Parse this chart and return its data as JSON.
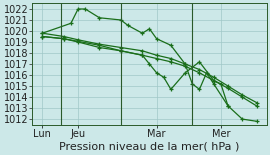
{
  "background_color": "#cce8e8",
  "grid_color": "#a0c8c8",
  "line_color": "#1a6e1a",
  "xlabel": "Pression niveau de la mer( hPa )",
  "ylim": [
    1011.5,
    1022.5
  ],
  "yticks": [
    1012,
    1013,
    1014,
    1015,
    1016,
    1017,
    1018,
    1019,
    1020,
    1021,
    1022
  ],
  "xtick_labels": [
    "Lun",
    "Jeu",
    "Mar",
    "Mer"
  ],
  "xtick_positions": [
    0.5,
    3,
    8.5,
    13
  ],
  "xlim": [
    -0.2,
    16.2
  ],
  "vline_positions": [
    1.8,
    6.0,
    11.0
  ],
  "series1_x": [
    0.5,
    2.5,
    3.0,
    3.5,
    4.5,
    6.0,
    6.5,
    7.5,
    8.0,
    8.5,
    9.5,
    10.5,
    11.0,
    11.5,
    12.0,
    12.5,
    13.5
  ],
  "series1_y": [
    1019.8,
    1020.7,
    1022.0,
    1022.0,
    1021.2,
    1021.0,
    1020.5,
    1019.8,
    1020.2,
    1019.3,
    1018.7,
    1017.0,
    1015.2,
    1014.7,
    1016.2,
    1015.2,
    1013.2
  ],
  "series2_x": [
    0.5,
    2.0,
    3.0,
    4.5,
    6.0,
    7.5,
    8.5,
    9.5,
    10.5,
    11.5,
    12.5,
    13.5,
    14.5,
    15.5
  ],
  "series2_y": [
    1019.8,
    1019.5,
    1019.2,
    1018.8,
    1018.5,
    1018.2,
    1017.8,
    1017.5,
    1017.0,
    1016.5,
    1015.8,
    1015.0,
    1014.2,
    1013.5
  ],
  "series3_x": [
    0.5,
    2.0,
    3.0,
    4.5,
    6.0,
    7.5,
    8.5,
    9.5,
    10.5,
    11.5,
    12.5,
    13.5,
    14.5,
    15.5
  ],
  "series3_y": [
    1019.5,
    1019.3,
    1019.0,
    1018.5,
    1018.2,
    1017.8,
    1017.5,
    1017.2,
    1016.8,
    1016.2,
    1015.5,
    1014.8,
    1014.0,
    1013.2
  ],
  "series4_x": [
    0.5,
    2.0,
    4.5,
    6.0,
    7.5,
    8.0,
    8.5,
    9.0,
    9.5,
    10.5,
    11.5,
    12.5,
    13.0,
    13.5,
    14.5,
    15.5
  ],
  "series4_y": [
    1019.5,
    1019.3,
    1018.7,
    1018.2,
    1017.8,
    1017.0,
    1016.2,
    1015.8,
    1014.7,
    1016.2,
    1017.2,
    1015.5,
    1015.2,
    1013.2,
    1012.0,
    1011.8
  ],
  "font_size": 7
}
